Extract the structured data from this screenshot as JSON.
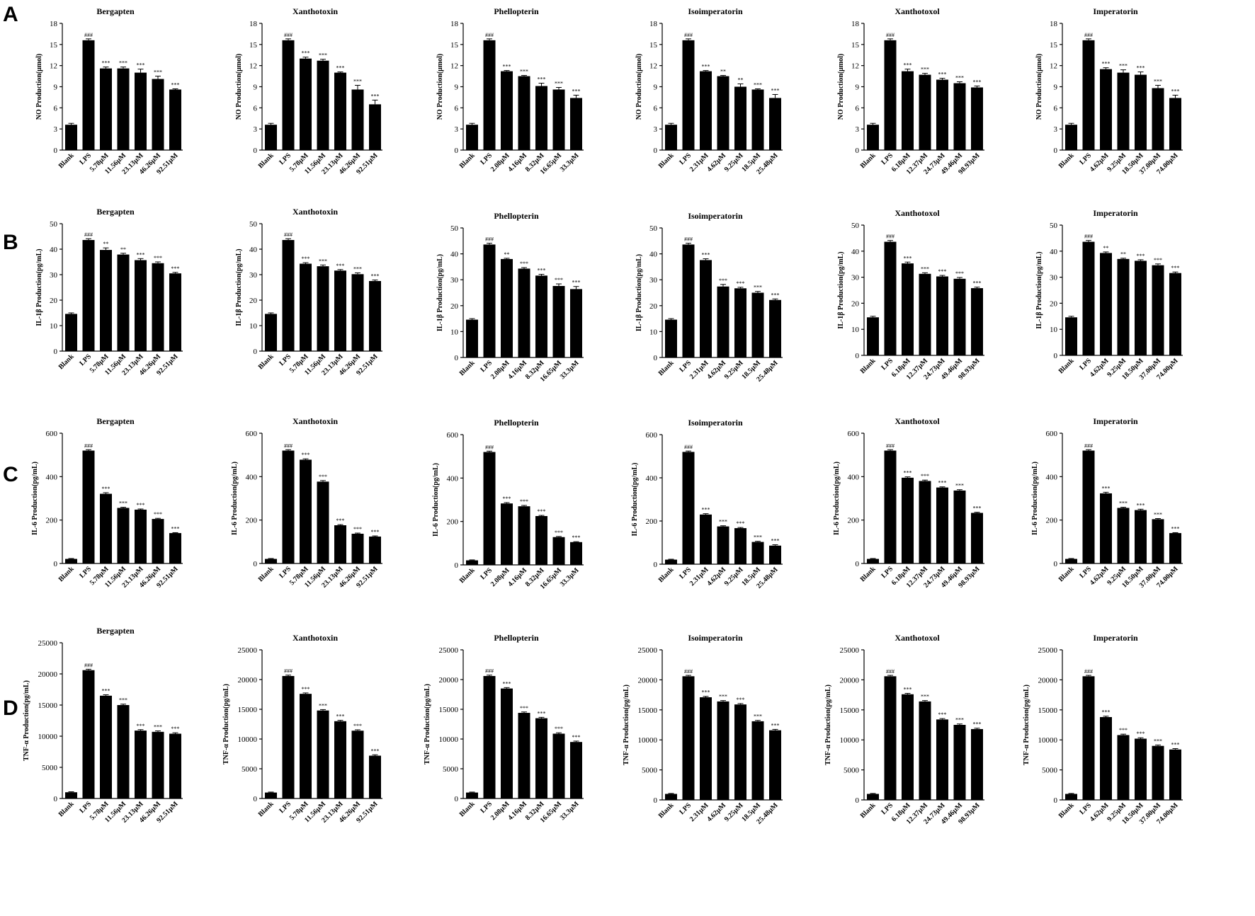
{
  "panels": [
    "A",
    "B",
    "C",
    "D"
  ],
  "chart_data": [
    {
      "type": "bar",
      "panel": "A",
      "title": "Bergapten",
      "ylabel": "NO Production(μmol)",
      "ylim": [
        0,
        18
      ],
      "yticks": [
        0,
        3,
        6,
        9,
        12,
        15,
        18
      ],
      "categories": [
        "Blank",
        "LPS",
        "5.78μM",
        "11.56μM",
        "23.13μM",
        "46.26μM",
        "92.51μM"
      ],
      "values": [
        3.6,
        15.6,
        11.6,
        11.6,
        11.0,
        10.1,
        8.6
      ],
      "errors": [
        0.2,
        0.2,
        0.2,
        0.2,
        0.5,
        0.4,
        0.1
      ],
      "labels": [
        "",
        "###",
        "***",
        "***",
        "***",
        "***",
        "***"
      ]
    },
    {
      "type": "bar",
      "panel": "A",
      "title": "Xanthotoxin",
      "ylabel": "NO Production(μmol)",
      "ylim": [
        0,
        18
      ],
      "yticks": [
        0,
        3,
        6,
        9,
        12,
        15,
        18
      ],
      "categories": [
        "Blank",
        "LPS",
        "5.78μM",
        "11.56μM",
        "23.13μM",
        "46.26μM",
        "92.51μM"
      ],
      "values": [
        3.6,
        15.6,
        13.0,
        12.7,
        11.0,
        8.6,
        6.5
      ],
      "errors": [
        0.2,
        0.2,
        0.2,
        0.2,
        0.1,
        0.6,
        0.6
      ],
      "labels": [
        "",
        "###",
        "***",
        "***",
        "***",
        "***",
        "***"
      ]
    },
    {
      "type": "bar",
      "panel": "A",
      "title": "Phellopterin",
      "ylabel": "NO Production(μmol)",
      "ylim": [
        0,
        18
      ],
      "yticks": [
        0,
        3,
        6,
        9,
        12,
        15,
        18
      ],
      "categories": [
        "Blank",
        "LPS",
        "2.08μM",
        "4.16μM",
        "8.32μM",
        "16.65μM",
        "33.3μM"
      ],
      "values": [
        3.6,
        15.6,
        11.2,
        10.5,
        9.1,
        8.6,
        7.4
      ],
      "errors": [
        0.2,
        0.2,
        0.1,
        0.1,
        0.4,
        0.3,
        0.4
      ],
      "labels": [
        "",
        "###",
        "***",
        "***",
        "***",
        "***",
        "***"
      ]
    },
    {
      "type": "bar",
      "panel": "A",
      "title": "Isoimperatorin",
      "ylabel": "NO Production(μmol)",
      "ylim": [
        0,
        18
      ],
      "yticks": [
        0,
        3,
        6,
        9,
        12,
        15,
        18
      ],
      "categories": [
        "Blank",
        "LPS",
        "2.31μM",
        "4.62μM",
        "9.25μM",
        "18.5μM",
        "25.48μM"
      ],
      "values": [
        3.6,
        15.6,
        11.2,
        10.5,
        9.0,
        8.6,
        7.4
      ],
      "errors": [
        0.2,
        0.2,
        0.1,
        0.1,
        0.4,
        0.1,
        0.5
      ],
      "labels": [
        "",
        "###",
        "***",
        "**",
        "**",
        "***",
        "***"
      ]
    },
    {
      "type": "bar",
      "panel": "A",
      "title": "Xanthotoxol",
      "ylabel": "NO Production(μmol)",
      "ylim": [
        0,
        18
      ],
      "yticks": [
        0,
        3,
        6,
        9,
        12,
        15,
        18
      ],
      "categories": [
        "Blank",
        "LPS",
        "6.18μM",
        "12.37μM",
        "24.73μM",
        "49.46μM",
        "98.93μM"
      ],
      "values": [
        3.6,
        15.6,
        11.2,
        10.7,
        10.0,
        9.5,
        8.9
      ],
      "errors": [
        0.2,
        0.2,
        0.3,
        0.2,
        0.2,
        0.2,
        0.2
      ],
      "labels": [
        "",
        "###",
        "***",
        "***",
        "***",
        "***",
        "***"
      ]
    },
    {
      "type": "bar",
      "panel": "A",
      "title": "Imperatorin",
      "ylabel": "NO Production(μmol)",
      "ylim": [
        0,
        18
      ],
      "yticks": [
        0,
        3,
        6,
        9,
        12,
        15,
        18
      ],
      "categories": [
        "Blank",
        "LPS",
        "4.62μM",
        "9.25μM",
        "18.50μM",
        "37.00μM",
        "74.00μM"
      ],
      "values": [
        3.6,
        15.6,
        11.5,
        11.0,
        10.7,
        8.8,
        7.4
      ],
      "errors": [
        0.2,
        0.2,
        0.2,
        0.4,
        0.4,
        0.4,
        0.4
      ],
      "labels": [
        "",
        "###",
        "***",
        "***",
        "***",
        "***",
        "***"
      ]
    },
    {
      "type": "bar",
      "panel": "B",
      "title": "Bergapten",
      "ylabel": "IL-1β Production(pg/mL)",
      "ylim": [
        0,
        50
      ],
      "yticks": [
        0,
        10,
        20,
        30,
        40,
        50
      ],
      "categories": [
        "Blank",
        "LPS",
        "5.78μM",
        "11.56μM",
        "23.13μM",
        "46.26μM",
        "92.51μM"
      ],
      "values": [
        14.6,
        43.6,
        39.7,
        37.9,
        35.7,
        34.5,
        30.5
      ],
      "errors": [
        0.4,
        0.5,
        0.8,
        0.5,
        0.6,
        0.5,
        0.4
      ],
      "labels": [
        "",
        "###",
        "**",
        "**",
        "***",
        "***",
        "***"
      ]
    },
    {
      "type": "bar",
      "panel": "B",
      "title": "Xanthotoxin",
      "ylabel": "IL-1β Production(pg/mL)",
      "ylim": [
        0,
        50
      ],
      "yticks": [
        0,
        10,
        20,
        30,
        40,
        50
      ],
      "categories": [
        "Blank",
        "LPS",
        "5.78μM",
        "11.56μM",
        "23.13μM",
        "46.26μM",
        "92.51μM"
      ],
      "values": [
        14.6,
        43.6,
        34.3,
        33.3,
        31.6,
        30.2,
        27.5
      ],
      "errors": [
        0.4,
        0.5,
        0.4,
        0.5,
        0.4,
        0.5,
        0.4
      ],
      "labels": [
        "",
        "###",
        "***",
        "***",
        "***",
        "***",
        "***"
      ]
    },
    {
      "type": "bar",
      "panel": "B",
      "title": "Phellopterin",
      "ylabel": "IL-1β Production(pg/mL)",
      "ylim": [
        0,
        50
      ],
      "yticks": [
        0,
        10,
        20,
        30,
        40,
        50
      ],
      "categories": [
        "Blank",
        "LPS",
        "2.08μM",
        "4.16μM",
        "8.32μM",
        "16.65μM",
        "33.3μM"
      ],
      "values": [
        14.6,
        43.6,
        38.0,
        34.3,
        31.6,
        27.6,
        26.4
      ],
      "errors": [
        0.4,
        0.5,
        0.3,
        0.4,
        0.5,
        0.8,
        1.0
      ],
      "labels": [
        "",
        "###",
        "**",
        "***",
        "***",
        "***",
        "***"
      ]
    },
    {
      "type": "bar",
      "panel": "B",
      "title": "Isoimperatorin",
      "ylabel": "IL-1β Production(pg/mL)",
      "ylim": [
        0,
        50
      ],
      "yticks": [
        0,
        10,
        20,
        30,
        40,
        50
      ],
      "categories": [
        "Blank",
        "LPS",
        "2.31μM",
        "4.62μM",
        "9.25μM",
        "18.5μM",
        "25.48μM"
      ],
      "values": [
        14.6,
        43.6,
        37.6,
        27.4,
        26.7,
        25.0,
        22.2
      ],
      "errors": [
        0.4,
        0.5,
        0.5,
        0.8,
        0.4,
        0.5,
        0.4
      ],
      "labels": [
        "",
        "###",
        "***",
        "***",
        "***",
        "***",
        "***"
      ]
    },
    {
      "type": "bar",
      "panel": "B",
      "title": "Xanthotoxol",
      "ylabel": "IL-1β Production(pg/mL)",
      "ylim": [
        0,
        50
      ],
      "yticks": [
        0,
        10,
        20,
        30,
        40,
        50
      ],
      "categories": [
        "Blank",
        "LPS",
        "6.18μM",
        "12.37μM",
        "24.73μM",
        "49.46μM",
        "98.93μM"
      ],
      "values": [
        14.6,
        43.6,
        35.3,
        31.3,
        30.3,
        29.4,
        25.8
      ],
      "errors": [
        0.4,
        0.5,
        0.5,
        0.4,
        0.4,
        0.5,
        0.4
      ],
      "labels": [
        "",
        "###",
        "***",
        "***",
        "***",
        "***",
        "***"
      ]
    },
    {
      "type": "bar",
      "panel": "B",
      "title": "Imperatorin",
      "ylabel": "IL-1β Production(pg/mL)",
      "ylim": [
        0,
        50
      ],
      "yticks": [
        0,
        10,
        20,
        30,
        40,
        50
      ],
      "categories": [
        "Blank",
        "LPS",
        "4.62μM",
        "9.25μM",
        "18.50μM",
        "37.00μM",
        "74.00μM"
      ],
      "values": [
        14.6,
        43.6,
        39.3,
        37.0,
        36.3,
        34.6,
        31.6
      ],
      "errors": [
        0.4,
        0.5,
        0.4,
        0.3,
        0.4,
        0.5,
        0.4
      ],
      "labels": [
        "",
        "###",
        "**",
        "**",
        "***",
        "***",
        "***"
      ]
    },
    {
      "type": "bar",
      "panel": "C",
      "title": "Bergapten",
      "ylabel": "IL-6 Production(pg/mL)",
      "ylim": [
        0,
        600
      ],
      "yticks": [
        0,
        200,
        400,
        600
      ],
      "categories": [
        "Blank",
        "LPS",
        "5.78μM",
        "11.56μM",
        "23.13μM",
        "46.26μM",
        "92.51μM"
      ],
      "values": [
        21,
        520,
        321,
        256,
        248,
        205,
        140
      ],
      "errors": [
        2,
        4,
        5,
        3,
        3,
        3,
        2
      ],
      "labels": [
        "",
        "###",
        "***",
        "***",
        "***",
        "***",
        "***"
      ]
    },
    {
      "type": "bar",
      "panel": "C",
      "title": "Xanthotoxin",
      "ylabel": "IL-6 Production(pg/mL)",
      "ylim": [
        0,
        600
      ],
      "yticks": [
        0,
        200,
        400,
        600
      ],
      "categories": [
        "Blank",
        "LPS",
        "5.78μM",
        "11.56μM",
        "23.13μM",
        "46.26μM",
        "92.51μM"
      ],
      "values": [
        21,
        520,
        478,
        377,
        176,
        137,
        124
      ],
      "errors": [
        2,
        4,
        4,
        5,
        3,
        3,
        3
      ],
      "labels": [
        "",
        "###",
        "***",
        "***",
        "***",
        "***",
        "***"
      ]
    },
    {
      "type": "bar",
      "panel": "C",
      "title": "Phellopterin",
      "ylabel": "IL-6 Production(pg/mL)",
      "ylim": [
        0,
        600
      ],
      "yticks": [
        0,
        200,
        400,
        600
      ],
      "categories": [
        "Blank",
        "LPS",
        "2.08μM",
        "4.16μM",
        "8.32μM",
        "16.65μM",
        "33.3μM"
      ],
      "values": [
        21,
        520,
        283,
        270,
        225,
        128,
        105
      ],
      "errors": [
        2,
        4,
        4,
        4,
        3,
        3,
        2
      ],
      "labels": [
        "",
        "###",
        "***",
        "***",
        "***",
        "***",
        "***"
      ]
    },
    {
      "type": "bar",
      "panel": "C",
      "title": "Isoimperatorin",
      "ylabel": "IL-6 Production(pg/mL)",
      "ylim": [
        0,
        600
      ],
      "yticks": [
        0,
        200,
        400,
        600
      ],
      "categories": [
        "Blank",
        "LPS",
        "2.31μM",
        "4.62μM",
        "9.25μM",
        "18.5μM",
        "25.48μM"
      ],
      "values": [
        21,
        520,
        230,
        175,
        167,
        103,
        86
      ],
      "errors": [
        2,
        4,
        4,
        3,
        3,
        3,
        4
      ],
      "labels": [
        "",
        "###",
        "***",
        "***",
        "***",
        "***",
        "***"
      ]
    },
    {
      "type": "bar",
      "panel": "C",
      "title": "Xanthotoxol",
      "ylabel": "IL-6 Production(pg/mL)",
      "ylim": [
        0,
        600
      ],
      "yticks": [
        0,
        200,
        400,
        600
      ],
      "categories": [
        "Blank",
        "LPS",
        "6.18μM",
        "12.37μM",
        "24.73μM",
        "49.46μM",
        "98.93μM"
      ],
      "values": [
        21,
        520,
        395,
        380,
        350,
        336,
        233
      ],
      "errors": [
        2,
        4,
        4,
        4,
        3,
        4,
        3
      ],
      "labels": [
        "",
        "###",
        "***",
        "***",
        "***",
        "***",
        "***"
      ]
    },
    {
      "type": "bar",
      "panel": "C",
      "title": "Imperatorin",
      "ylabel": "IL-6 Production(pg/mL)",
      "ylim": [
        0,
        600
      ],
      "yticks": [
        0,
        200,
        400,
        600
      ],
      "categories": [
        "Blank",
        "LPS",
        "4.62μM",
        "9.25μM",
        "18.50μM",
        "37.00μM",
        "74.00μM"
      ],
      "values": [
        21,
        520,
        323,
        256,
        246,
        204,
        140
      ],
      "errors": [
        2,
        4,
        5,
        3,
        4,
        3,
        2
      ],
      "labels": [
        "",
        "###",
        "***",
        "***",
        "***",
        "***",
        "***"
      ]
    },
    {
      "type": "bar",
      "panel": "D",
      "title": "Bergapten",
      "ylabel": "TNF-α Production(pg/mL)",
      "ylim": [
        0,
        25000
      ],
      "yticks": [
        0,
        5000,
        10000,
        15000,
        20000,
        25000
      ],
      "categories": [
        "Blank",
        "LPS",
        "5.78μM",
        "11.56μM",
        "23.13μM",
        "46.26μM",
        "92.51μM"
      ],
      "values": [
        1000,
        20600,
        16500,
        15000,
        10900,
        10700,
        10400
      ],
      "errors": [
        80,
        150,
        150,
        150,
        150,
        150,
        150
      ],
      "labels": [
        "",
        "###",
        "***",
        "***",
        "***",
        "***",
        "***"
      ]
    },
    {
      "type": "bar",
      "panel": "D",
      "title": "Xanthotoxin",
      "ylabel": "TNF-α Production(pg/mL)",
      "ylim": [
        0,
        25000
      ],
      "yticks": [
        0,
        5000,
        10000,
        15000,
        20000,
        25000
      ],
      "categories": [
        "Blank",
        "LPS",
        "5.78μM",
        "11.56μM",
        "23.13μM",
        "46.26μM",
        "92.51μM"
      ],
      "values": [
        1000,
        20600,
        17600,
        14800,
        13000,
        11400,
        7200
      ],
      "errors": [
        80,
        150,
        150,
        150,
        150,
        150,
        150
      ],
      "labels": [
        "",
        "###",
        "***",
        "***",
        "***",
        "***",
        "***"
      ]
    },
    {
      "type": "bar",
      "panel": "D",
      "title": "Phellopterin",
      "ylabel": "TNF-α Production(pg/mL)",
      "ylim": [
        0,
        25000
      ],
      "yticks": [
        0,
        5000,
        10000,
        15000,
        20000,
        25000
      ],
      "categories": [
        "Blank",
        "LPS",
        "2.08μM",
        "4.16μM",
        "8.32μM",
        "16.65μM",
        "33.3μM"
      ],
      "values": [
        1000,
        20600,
        18500,
        14400,
        13500,
        10900,
        9500
      ],
      "errors": [
        80,
        150,
        150,
        150,
        150,
        150,
        150
      ],
      "labels": [
        "",
        "###",
        "***",
        "***",
        "***",
        "***",
        "***"
      ]
    },
    {
      "type": "bar",
      "panel": "D",
      "title": "Isoimperatorin",
      "ylabel": "TNF-α Production(pg/mL)",
      "ylim": [
        0,
        25000
      ],
      "yticks": [
        0,
        5000,
        10000,
        15000,
        20000,
        25000
      ],
      "categories": [
        "Blank",
        "LPS",
        "2.31μM",
        "4.62μM",
        "9.25μM",
        "18.5μM",
        "25.48μM"
      ],
      "values": [
        1000,
        20600,
        17100,
        16400,
        15900,
        13100,
        11600
      ],
      "errors": [
        80,
        150,
        150,
        150,
        150,
        150,
        150
      ],
      "labels": [
        "",
        "###",
        "***",
        "***",
        "***",
        "***",
        "***"
      ]
    },
    {
      "type": "bar",
      "panel": "D",
      "title": "Xanthotoxol",
      "ylabel": "TNF-α Production(pg/mL)",
      "ylim": [
        0,
        25000
      ],
      "yticks": [
        0,
        5000,
        10000,
        15000,
        20000,
        25000
      ],
      "categories": [
        "Blank",
        "LPS",
        "6.18μM",
        "12.37μM",
        "24.73μM",
        "49.46μM",
        "98.93μM"
      ],
      "values": [
        1000,
        20600,
        17600,
        16400,
        13400,
        12500,
        11800
      ],
      "errors": [
        80,
        150,
        150,
        150,
        150,
        150,
        150
      ],
      "labels": [
        "",
        "###",
        "***",
        "***",
        "***",
        "***",
        "***"
      ]
    },
    {
      "type": "bar",
      "panel": "D",
      "title": "Imperatorin",
      "ylabel": "TNF-α Production(pg/mL)",
      "ylim": [
        0,
        25000
      ],
      "yticks": [
        0,
        5000,
        10000,
        15000,
        20000,
        25000
      ],
      "categories": [
        "Blank",
        "LPS",
        "4.62μM",
        "9.25μM",
        "18.50μM",
        "37.00μM",
        "74.00μM"
      ],
      "values": [
        1000,
        20600,
        13800,
        10800,
        10200,
        9000,
        8400
      ],
      "errors": [
        80,
        150,
        150,
        150,
        150,
        150,
        150
      ],
      "labels": [
        "",
        "###",
        "***",
        "***",
        "***",
        "***",
        "***"
      ]
    }
  ]
}
